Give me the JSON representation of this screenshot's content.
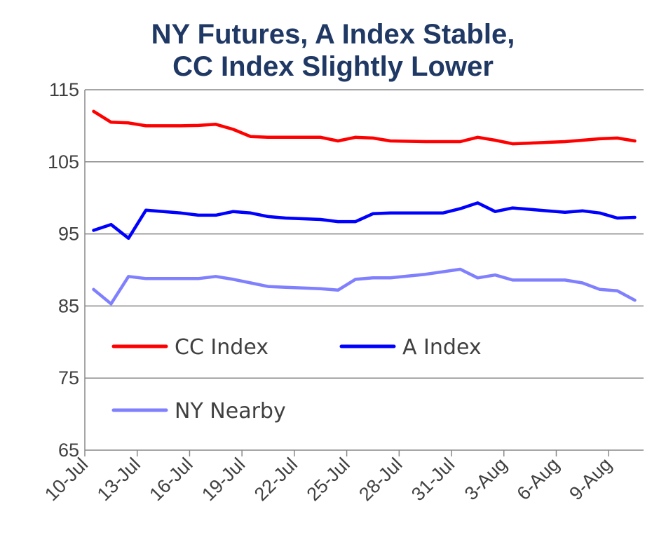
{
  "chart_data": {
    "type": "line",
    "title_line1": "NY Futures, A Index Stable,",
    "title_line2": "CC Index Slightly Lower",
    "xlabel": "",
    "ylabel": "",
    "ylim": [
      65,
      115
    ],
    "yticks": [
      "65",
      "75",
      "85",
      "95",
      "105",
      "115"
    ],
    "x_start": "10-Jul",
    "x_days": 32,
    "xticks": [
      {
        "day": 0,
        "label": "10-Jul"
      },
      {
        "day": 3,
        "label": "13-Jul"
      },
      {
        "day": 6,
        "label": "16-Jul"
      },
      {
        "day": 9,
        "label": "19-Jul"
      },
      {
        "day": 12,
        "label": "22-Jul"
      },
      {
        "day": 15,
        "label": "25-Jul"
      },
      {
        "day": 18,
        "label": "28-Jul"
      },
      {
        "day": 21,
        "label": "31-Jul"
      },
      {
        "day": 24,
        "label": "3-Aug"
      },
      {
        "day": 27,
        "label": "6-Aug"
      },
      {
        "day": 30,
        "label": "9-Aug"
      }
    ],
    "grid": true,
    "legend": "inside-lower-left",
    "series": [
      {
        "name": "CC Index",
        "color": "#ff0000",
        "points": [
          [
            0.5,
            112
          ],
          [
            1.5,
            110.5
          ],
          [
            2.5,
            110.4
          ],
          [
            3.5,
            110
          ],
          [
            4.5,
            110
          ],
          [
            5.5,
            110
          ],
          [
            6.5,
            110.05
          ],
          [
            7.5,
            110.2
          ],
          [
            8.5,
            109.5
          ],
          [
            9.5,
            108.5
          ],
          [
            10.5,
            108.4
          ],
          [
            11.5,
            108.4
          ],
          [
            12.5,
            108.4
          ],
          [
            13.5,
            108.4
          ],
          [
            14.5,
            107.9
          ],
          [
            15.5,
            108.4
          ],
          [
            16.5,
            108.3
          ],
          [
            17.5,
            107.9
          ],
          [
            19.5,
            107.8
          ],
          [
            21.5,
            107.8
          ],
          [
            22.5,
            108.4
          ],
          [
            23.5,
            108
          ],
          [
            24.5,
            107.5
          ],
          [
            25.5,
            107.6
          ],
          [
            26.5,
            107.7
          ],
          [
            27.5,
            107.8
          ],
          [
            28.5,
            108
          ],
          [
            29.5,
            108.2
          ],
          [
            30.5,
            108.3
          ],
          [
            31.5,
            107.9
          ]
        ]
      },
      {
        "name": "A Index",
        "color": "#0000ff",
        "points": [
          [
            0.5,
            95.5
          ],
          [
            1.5,
            96.3
          ],
          [
            2.5,
            94.4
          ],
          [
            3.5,
            98.3
          ],
          [
            4.5,
            98.1
          ],
          [
            5.5,
            97.9
          ],
          [
            6.5,
            97.6
          ],
          [
            7.5,
            97.6
          ],
          [
            8.5,
            98.1
          ],
          [
            9.5,
            97.9
          ],
          [
            10.5,
            97.4
          ],
          [
            11.5,
            97.2
          ],
          [
            12.5,
            97.1
          ],
          [
            13.5,
            97
          ],
          [
            14.5,
            96.7
          ],
          [
            15.5,
            96.7
          ],
          [
            16.5,
            97.8
          ],
          [
            17.5,
            97.9
          ],
          [
            19.5,
            97.9
          ],
          [
            20.5,
            97.9
          ],
          [
            21.5,
            98.5
          ],
          [
            22.5,
            99.3
          ],
          [
            23.5,
            98.1
          ],
          [
            24.5,
            98.6
          ],
          [
            25.5,
            98.4
          ],
          [
            26.5,
            98.2
          ],
          [
            27.5,
            98
          ],
          [
            28.5,
            98.2
          ],
          [
            29.5,
            97.9
          ],
          [
            30.5,
            97.2
          ],
          [
            31.5,
            97.3
          ]
        ]
      },
      {
        "name": "NY Nearby",
        "color": "#8080ff",
        "points": [
          [
            0.5,
            87.3
          ],
          [
            1.5,
            85.3
          ],
          [
            2.5,
            89.1
          ],
          [
            3.5,
            88.8
          ],
          [
            4.5,
            88.8
          ],
          [
            5.5,
            88.8
          ],
          [
            6.5,
            88.8
          ],
          [
            7.5,
            89.1
          ],
          [
            8.5,
            88.7
          ],
          [
            9.5,
            88.2
          ],
          [
            10.5,
            87.7
          ],
          [
            11.5,
            87.6
          ],
          [
            12.5,
            87.5
          ],
          [
            13.5,
            87.4
          ],
          [
            14.5,
            87.2
          ],
          [
            15.5,
            88.7
          ],
          [
            16.5,
            88.9
          ],
          [
            17.5,
            88.9
          ],
          [
            19.5,
            89.4
          ],
          [
            21.5,
            90.1
          ],
          [
            22.5,
            88.9
          ],
          [
            23.5,
            89.3
          ],
          [
            24.5,
            88.6
          ],
          [
            25.5,
            88.6
          ],
          [
            26.5,
            88.6
          ],
          [
            27.5,
            88.6
          ],
          [
            28.5,
            88.2
          ],
          [
            29.5,
            87.3
          ],
          [
            30.5,
            87.1
          ],
          [
            31.5,
            85.8
          ]
        ]
      }
    ]
  }
}
